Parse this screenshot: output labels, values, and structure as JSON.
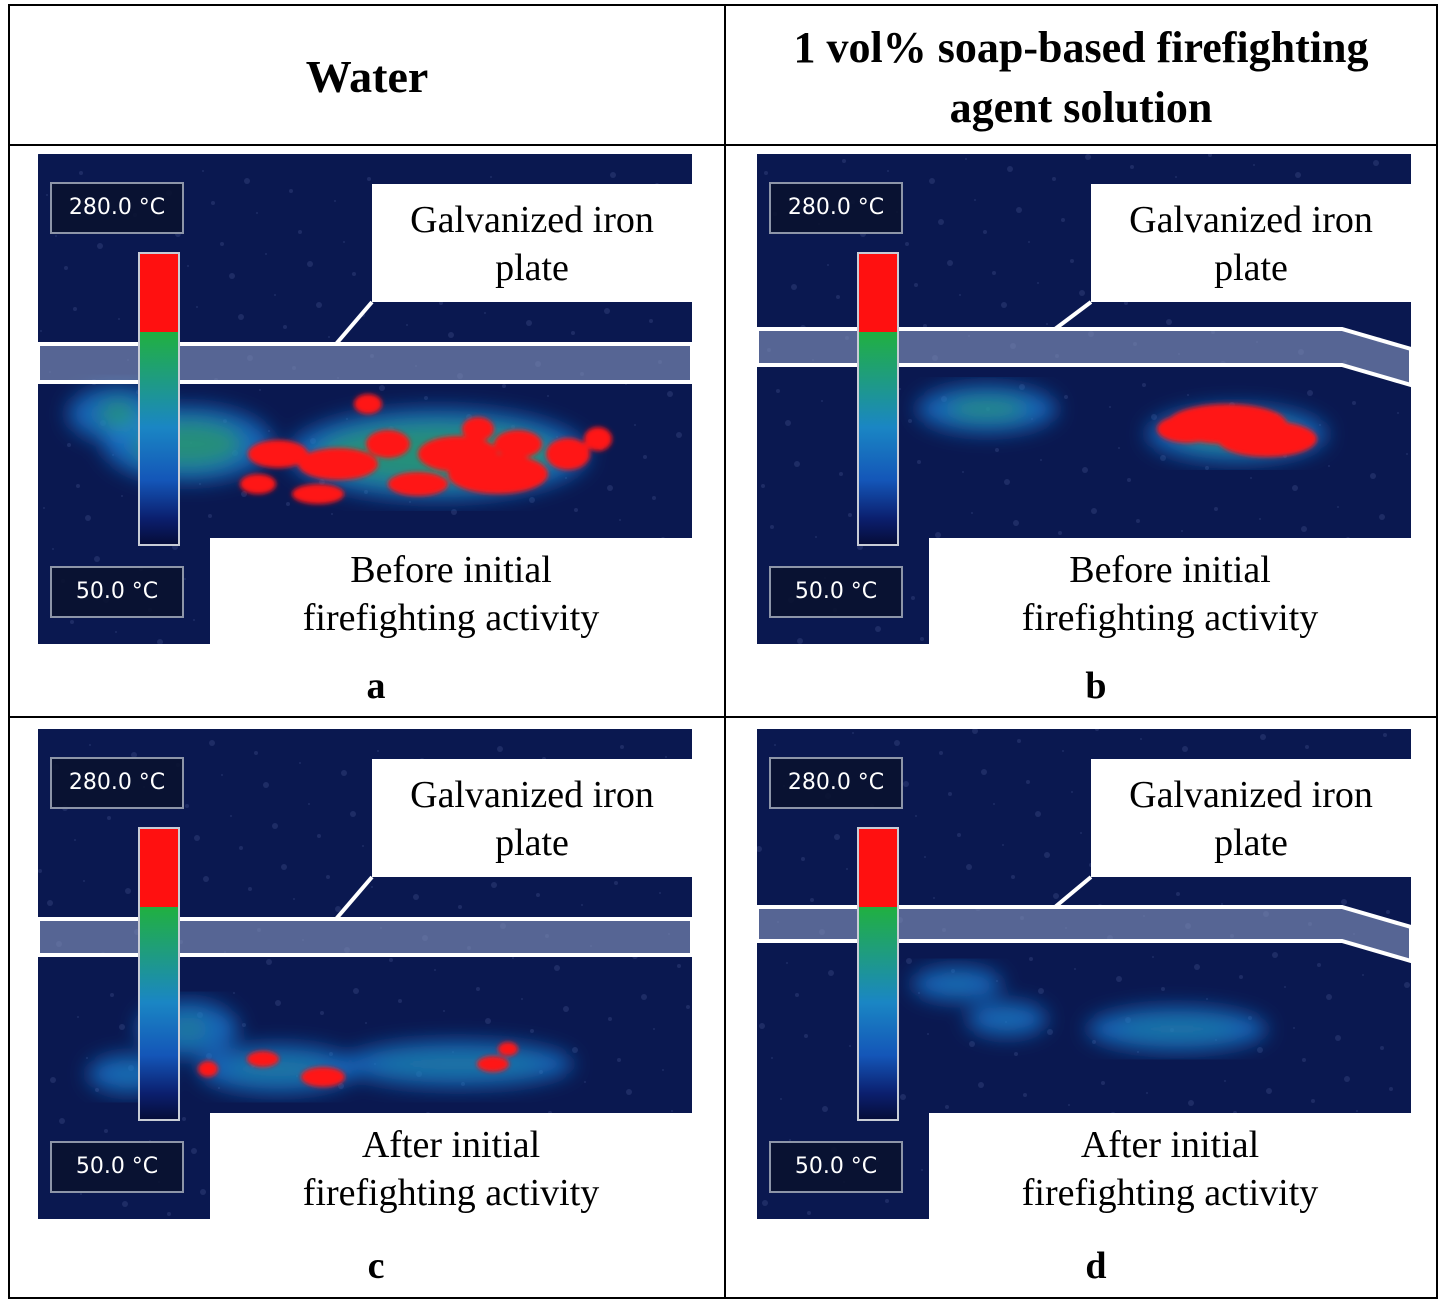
{
  "headers": {
    "water": "Water",
    "soap_line1": "1 vol% soap-based firefighting",
    "soap_line2": "agent solution"
  },
  "panels": [
    {
      "letter": "a",
      "temp_max": "280.0 °C",
      "temp_min": "50.0 °C",
      "plate_line1": "Galvanized iron",
      "plate_line2": "plate",
      "state_line1": "Before initial",
      "state_line2": "firefighting activity"
    },
    {
      "letter": "b",
      "temp_max": "280.0 °C",
      "temp_min": "50.0 °C",
      "plate_line1": "Galvanized iron",
      "plate_line2": "plate",
      "state_line1": "Before initial",
      "state_line2": "firefighting activity"
    },
    {
      "letter": "c",
      "temp_max": "280.0 °C",
      "temp_min": "50.0 °C",
      "plate_line1": "Galvanized iron",
      "plate_line2": "plate",
      "state_line1": "After initial",
      "state_line2": "firefighting activity"
    },
    {
      "letter": "d",
      "temp_max": "280.0 °C",
      "temp_min": "50.0 °C",
      "plate_line1": "Galvanized iron",
      "plate_line2": "plate",
      "state_line1": "After initial",
      "state_line2": "firefighting activity"
    }
  ],
  "colors": {
    "thermal_background": "#0a1850",
    "hot": "#ff1414",
    "warm": "#2fb04a",
    "cool": "#1c7fd8",
    "plate_band": "#7f8fb8"
  }
}
